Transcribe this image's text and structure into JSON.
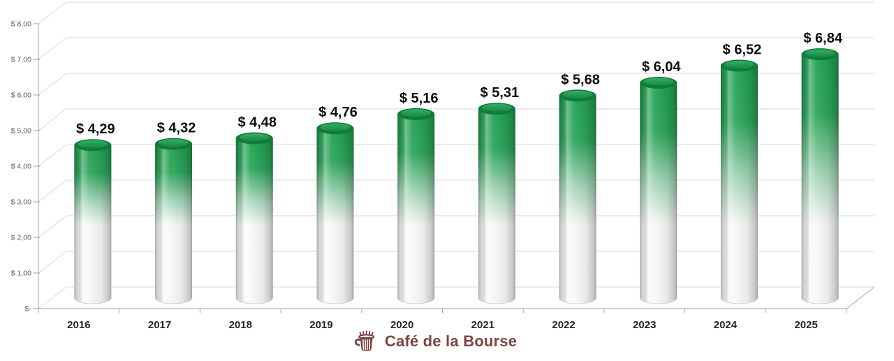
{
  "chart_data": {
    "type": "bar",
    "style": "3d-cylinder",
    "title": "",
    "xlabel": "",
    "ylabel": "",
    "categories": [
      "2016",
      "2017",
      "2018",
      "2019",
      "2020",
      "2021",
      "2022",
      "2023",
      "2024",
      "2025"
    ],
    "values": [
      4.29,
      4.32,
      4.48,
      4.76,
      5.16,
      5.31,
      5.68,
      6.04,
      6.52,
      6.84
    ],
    "value_labels": [
      "$ 4,29",
      "$ 4,32",
      "$ 4,48",
      "$ 4,76",
      "$ 5,16",
      "$ 5,31",
      "$ 5,68",
      "$ 6,04",
      "$ 6,52",
      "$ 6,84"
    ],
    "ylim": [
      0,
      8
    ],
    "y_tick_labels": [
      "$-",
      "$ 1,00",
      "$ 2,00",
      "$ 3,00",
      "$ 4,00",
      "$ 5,00",
      "$ 6,00",
      "$ 7,00",
      "$ 8,00"
    ],
    "grid": true,
    "legend": false,
    "colors": {
      "bar_green_top": "#21a152",
      "bar_fade_bottom": "#f7f8f7",
      "cap_rim": "#0f7c3a",
      "cap_top_light": "#35ad64",
      "cap_top_dark": "#1a8845",
      "gridline": "#d9d9d9",
      "axis": "#a6a6a6",
      "tick": "#9a9a9a",
      "value_label": "#0d0d0d",
      "x_label": "#262626",
      "y_label": "#595959"
    }
  },
  "branding": {
    "logo_text": "Café de la Bourse",
    "logo_color": "#7b4540",
    "icon": "coffee-cup-icon"
  }
}
